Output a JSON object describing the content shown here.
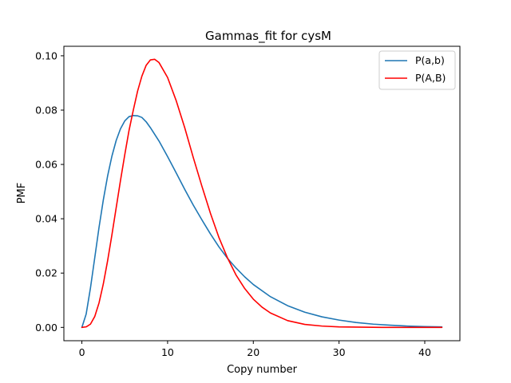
{
  "chart_data": {
    "type": "line",
    "title": "Gammas_fit for cysM",
    "xlabel": "Copy number",
    "ylabel": "PMF",
    "xlim": [
      -2.1,
      44.1
    ],
    "ylim": [
      -0.0049,
      0.1035
    ],
    "xticks": [
      0,
      10,
      20,
      30,
      40
    ],
    "xtick_labels": [
      "0",
      "10",
      "20",
      "30",
      "40"
    ],
    "yticks": [
      0.0,
      0.02,
      0.04,
      0.06,
      0.08,
      0.1
    ],
    "ytick_labels": [
      "0.00",
      "0.02",
      "0.04",
      "0.06",
      "0.08",
      "0.10"
    ],
    "grid": false,
    "legend_position": "top-right",
    "series": [
      {
        "name": "P(a,b)",
        "color": "#1f77b4",
        "x": [
          0,
          0.5,
          1,
          1.5,
          2,
          2.5,
          3,
          3.5,
          4,
          4.5,
          5,
          5.5,
          6,
          6.5,
          7,
          7.5,
          8,
          9,
          10,
          11,
          12,
          13,
          14,
          15,
          16,
          17,
          18,
          19,
          20,
          22,
          24,
          26,
          28,
          30,
          32,
          34,
          36,
          38,
          40,
          42
        ],
        "y": [
          0.0,
          0.0049,
          0.0145,
          0.0256,
          0.0368,
          0.0469,
          0.0557,
          0.063,
          0.0688,
          0.0731,
          0.076,
          0.0776,
          0.078,
          0.0779,
          0.0773,
          0.0757,
          0.0735,
          0.0686,
          0.0629,
          0.0569,
          0.0508,
          0.045,
          0.0396,
          0.0344,
          0.0296,
          0.0254,
          0.0218,
          0.0186,
          0.0158,
          0.0113,
          0.008,
          0.0056,
          0.0039,
          0.0027,
          0.0018,
          0.0012,
          0.0008,
          0.0005,
          0.0003,
          0.0002
        ]
      },
      {
        "name": "P(A,B)",
        "color": "#ff0000",
        "x": [
          0,
          0.5,
          1,
          1.5,
          2,
          2.5,
          3,
          3.5,
          4,
          4.5,
          5,
          5.5,
          6,
          6.5,
          7,
          7.5,
          8,
          8.5,
          9,
          10,
          11,
          12,
          13,
          14,
          15,
          16,
          17,
          18,
          19,
          20,
          21,
          22,
          24,
          26,
          28,
          30,
          32,
          35,
          38,
          42
        ],
        "y": [
          0.0,
          0.0002,
          0.0012,
          0.004,
          0.009,
          0.016,
          0.0245,
          0.034,
          0.044,
          0.054,
          0.0635,
          0.0725,
          0.08,
          0.087,
          0.0925,
          0.0965,
          0.0985,
          0.0987,
          0.0975,
          0.092,
          0.0835,
          0.0735,
          0.0625,
          0.052,
          0.042,
          0.033,
          0.0255,
          0.0192,
          0.0143,
          0.0104,
          0.0075,
          0.0053,
          0.0025,
          0.0011,
          0.0005,
          0.0002,
          0.0001,
          0.0,
          0.0,
          0.0
        ]
      }
    ]
  }
}
